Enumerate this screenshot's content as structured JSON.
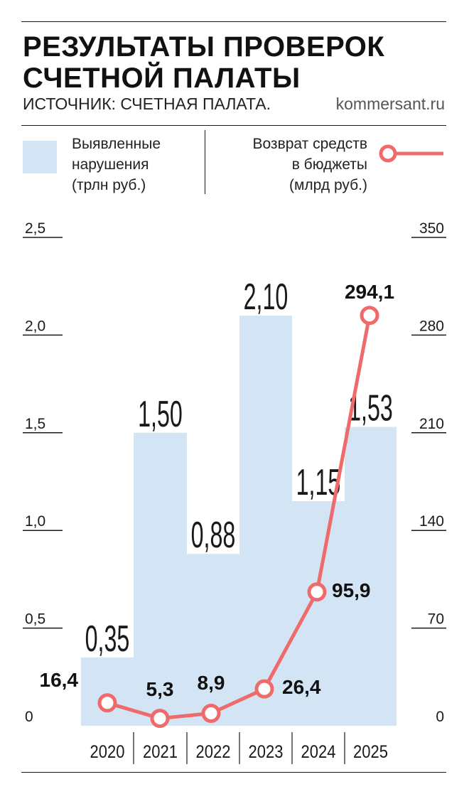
{
  "header": {
    "title_line1": "РЕЗУЛЬТАТЫ ПРОВЕРОК",
    "title_line2": "СЧЕТНОЙ ПАЛАТЫ",
    "source": "ИСТОЧНИК: СЧЕТНАЯ ПАЛАТА.",
    "site": "kommersant.ru"
  },
  "legend": {
    "bars_label": [
      "Выявленные",
      "нарушения",
      "(трлн руб.)"
    ],
    "line_label": [
      "Возврат средств",
      "в бюджеты",
      "(млрд руб.)"
    ]
  },
  "colors": {
    "bar_fill": "#d3e5f5",
    "line": "#ef6b6b",
    "text": "#1a1a1a"
  },
  "chart_data": {
    "type": "bar",
    "categories": [
      "2020",
      "2021",
      "2022",
      "2023",
      "2024",
      "2025"
    ],
    "series": [
      {
        "name": "Выявленные нарушения (трлн руб.)",
        "type": "bar",
        "axis": "left",
        "values": [
          0.35,
          1.5,
          0.88,
          2.1,
          1.15,
          1.53
        ],
        "labels": [
          "0,35",
          "1,50",
          "0,88",
          "2,10",
          "1,15",
          "1,53"
        ]
      },
      {
        "name": "Возврат средств в бюджеты (млрд руб.)",
        "type": "line",
        "axis": "right",
        "values": [
          16.4,
          5.3,
          8.9,
          26.4,
          95.9,
          294.1
        ],
        "labels": [
          "16,4",
          "5,3",
          "8,9",
          "26,4",
          "95,9",
          "294,1"
        ]
      }
    ],
    "left_axis": {
      "ylim": [
        0,
        2.5
      ],
      "ticks": [
        "0",
        "0,5",
        "1,0",
        "1,5",
        "2,0",
        "2,5"
      ]
    },
    "right_axis": {
      "ylim": [
        0,
        350
      ],
      "ticks": [
        "0",
        "70",
        "140",
        "210",
        "280",
        "350"
      ]
    },
    "grid": false,
    "legend_position": "top"
  }
}
